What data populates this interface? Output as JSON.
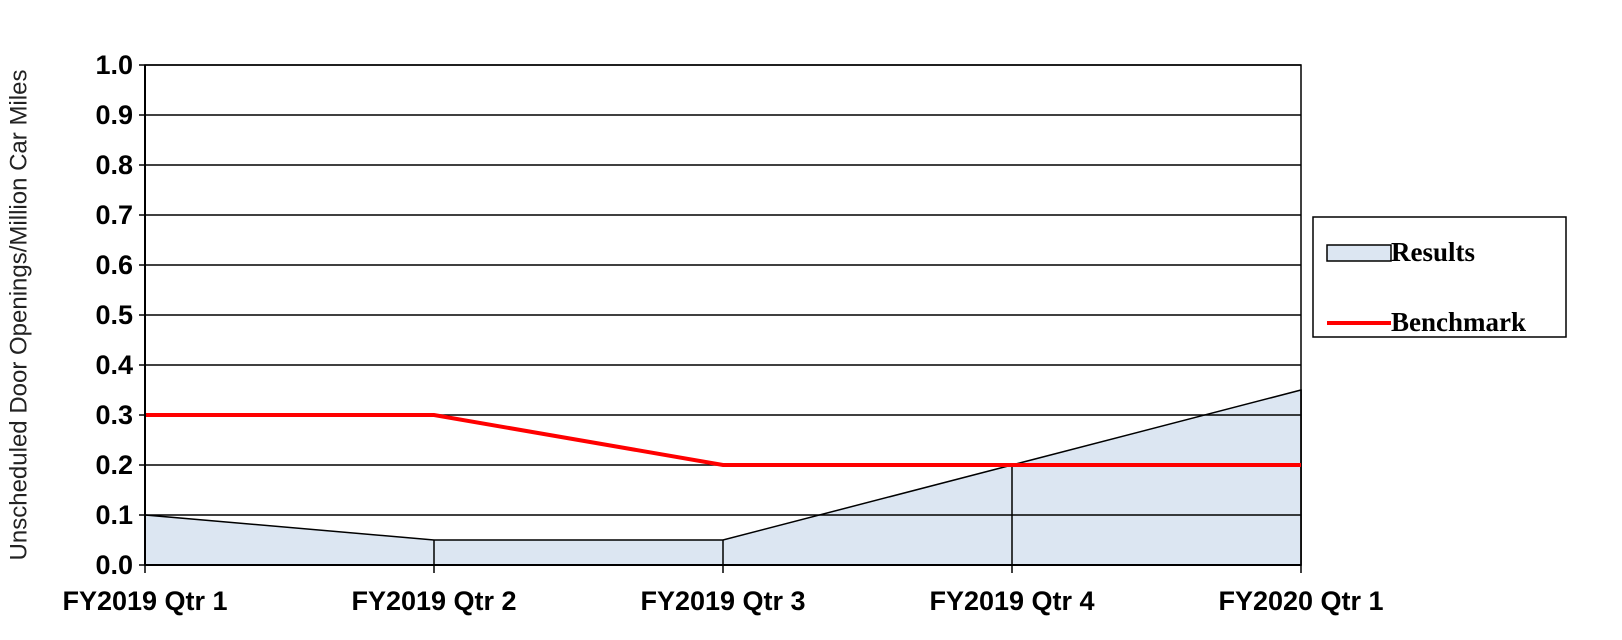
{
  "chart_data": {
    "type": "area",
    "y_label": "Unscheduled Door Openings/Million Car Miles",
    "categories": [
      "FY2019 Qtr 1",
      "FY2019 Qtr 2",
      "FY2019 Qtr 3",
      "FY2019 Qtr 4",
      "FY2020 Qtr 1"
    ],
    "series": [
      {
        "name": "Results",
        "type": "area",
        "color": "#dce6f2",
        "values": [
          0.1,
          0.05,
          0.05,
          0.2,
          0.35
        ]
      },
      {
        "name": "Benchmark",
        "type": "line",
        "color": "#ff0000",
        "values": [
          0.3,
          0.3,
          0.2,
          0.2,
          0.2
        ]
      }
    ],
    "ylim": [
      0,
      1
    ],
    "yticks": [
      {
        "value": 0,
        "label": "0.0"
      },
      0.1,
      0.2,
      0.3,
      0.4,
      0.5,
      0.6,
      0.7,
      0.8,
      0.9,
      {
        "value": 1,
        "label": "1.0"
      }
    ],
    "grid": true,
    "legend": "right"
  }
}
